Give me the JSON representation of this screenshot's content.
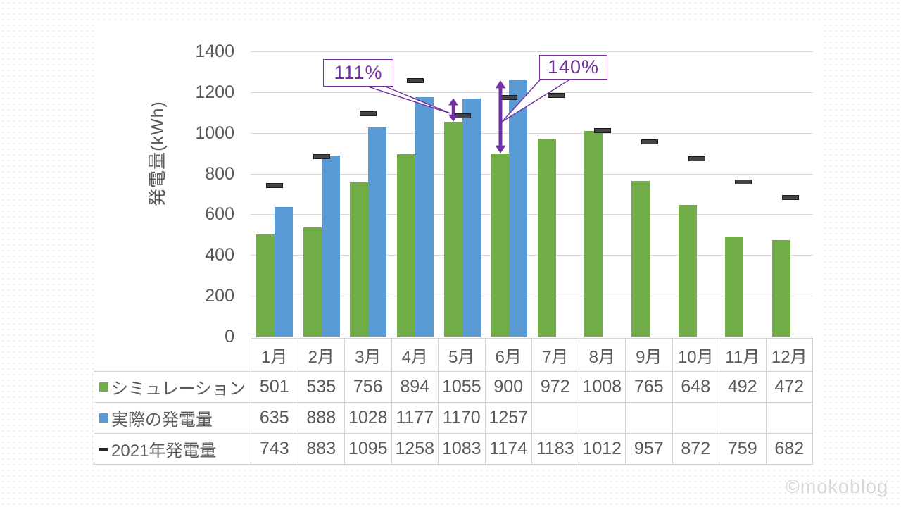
{
  "watermark": "©mokoblog",
  "chart_data": {
    "type": "bar",
    "title": "",
    "xlabel": "",
    "ylabel": "発電量(kWh)",
    "ylim": [
      0,
      1400
    ],
    "yticks": [
      0,
      200,
      400,
      600,
      800,
      1000,
      1200,
      1400
    ],
    "grid": true,
    "legend_position": "data-table-left",
    "categories": [
      "1月",
      "2月",
      "3月",
      "4月",
      "5月",
      "6月",
      "7月",
      "8月",
      "9月",
      "10月",
      "11月",
      "12月"
    ],
    "series": [
      {
        "name": "シミュレーション",
        "type": "bar",
        "color": "#70AD47",
        "values": [
          501,
          535,
          756,
          894,
          1055,
          900,
          972,
          1008,
          765,
          648,
          492,
          472
        ]
      },
      {
        "name": "実際の発電量",
        "type": "bar",
        "color": "#5B9BD5",
        "values": [
          635,
          888,
          1028,
          1177,
          1170,
          1257,
          null,
          null,
          null,
          null,
          null,
          null
        ]
      },
      {
        "name": "2021年発電量",
        "type": "dash-marker",
        "color": "#404040",
        "values": [
          743,
          883,
          1095,
          1258,
          1083,
          1174,
          1183,
          1012,
          957,
          872,
          759,
          682
        ]
      }
    ],
    "annotations": [
      {
        "label": "111%",
        "month": "5月",
        "from_value": 1055,
        "to_value": 1170
      },
      {
        "label": "140%",
        "month": "6月",
        "from_value": 900,
        "to_value": 1257
      }
    ],
    "annotation_color": "#7030A0"
  }
}
